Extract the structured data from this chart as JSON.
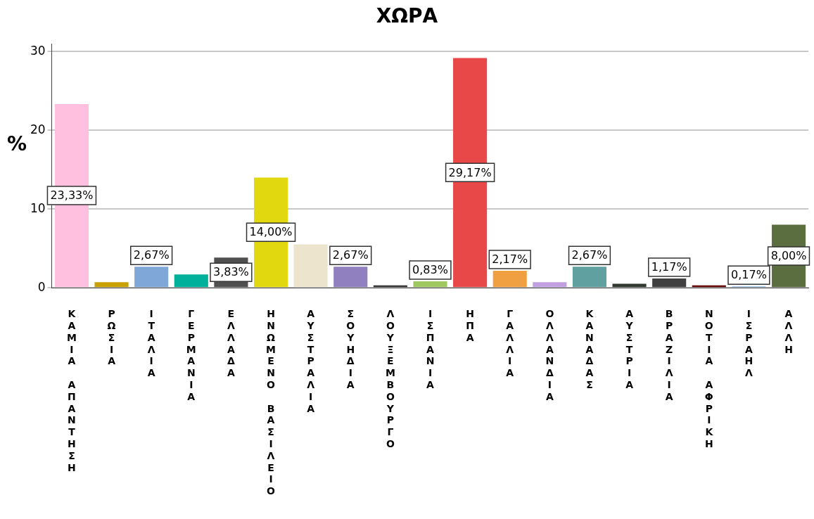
{
  "chart_data": {
    "type": "bar",
    "title": "ΧΩΡΑ",
    "ylabel": "%",
    "categories": [
      "ΚΑΜΙΑ ΑΠΑΝΤΗΣΗ",
      "ΡΩΣΙΑ",
      "ΙΤΑΛΙΑ",
      "ΓΕΡΜΑΝΙΑ",
      "ΕΛΛΑΔΑ",
      "ΗΝΩΜΕΝΟ ΒΑΣΙΛΕΙΟ",
      "ΑΥΣΤΡΑΛΙΑ",
      "ΣΟΥΗΔΙΑ",
      "ΛΟΥΞΕΜΒΟΥΡΓΟ",
      "ΙΣΠΑΝΙΑ",
      "ΗΠΑ",
      "ΓΑΛΛΙΑ",
      "ΟΛΛΑΝΔΙΑ",
      "ΚΑΝΑΔΑΣ",
      "ΑΥΣΤΡΙΑ",
      "ΒΡΑΖΙΛΙΑ",
      "ΝΟΤΙΑ ΑΦΡΙΚΗ",
      "ΙΣΡΑΗΛ",
      "ΑΛΛΗ"
    ],
    "values": [
      23.33,
      0.7,
      2.67,
      1.7,
      3.83,
      14.0,
      5.5,
      2.67,
      0.3,
      0.83,
      29.17,
      2.17,
      0.7,
      2.67,
      0.5,
      1.17,
      0.3,
      0.17,
      8.0
    ],
    "value_labels": [
      "23,33%",
      null,
      "2,67%",
      null,
      "3,83%",
      "14,00%",
      null,
      "2,67%",
      null,
      "0,83%",
      "29,17%",
      "2,17%",
      null,
      "2,67%",
      null,
      "1,17%",
      null,
      "0,17%",
      "8,00%"
    ],
    "colors": [
      "#ffc0e0",
      "#c8a000",
      "#7fa8d8",
      "#00b09a",
      "#505050",
      "#e2d810",
      "#ece4cc",
      "#9080c0",
      "#303030",
      "#a0c860",
      "#e84848",
      "#f0a040",
      "#c0a0e0",
      "#60a0a0",
      "#303830",
      "#404040",
      "#600000",
      "#80b0e0",
      "#5a6e40"
    ],
    "ylim": [
      0,
      31
    ],
    "yticks": [
      0,
      10,
      20,
      30
    ],
    "grid": "y",
    "legend": false
  }
}
